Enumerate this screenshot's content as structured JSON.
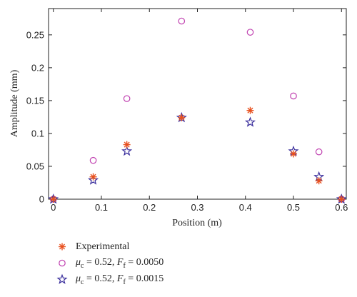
{
  "chart_data": {
    "type": "scatter",
    "xlabel": "Position (m)",
    "ylabel": "Amplitude (mm)",
    "xlim": [
      -0.01,
      0.61
    ],
    "ylim": [
      0,
      0.29
    ],
    "xticks": [
      "0",
      "0.1",
      "0.2",
      "0.3",
      "0.4",
      "0.5",
      "0.6"
    ],
    "xtick_values": [
      0,
      0.1,
      0.2,
      0.3,
      0.4,
      0.5,
      0.6
    ],
    "yticks": [
      "0",
      "0.05",
      "0.1",
      "0.15",
      "0.2",
      "0.25"
    ],
    "ytick_values": [
      0,
      0.05,
      0.1,
      0.15,
      0.2,
      0.25
    ],
    "grid": false,
    "legend_position": "below",
    "series": [
      {
        "name": "Experimental",
        "marker": "asterisk",
        "color": "#e8501e",
        "x": [
          0,
          0.083,
          0.153,
          0.267,
          0.41,
          0.5,
          0.553,
          0.6
        ],
        "y": [
          0,
          0.034,
          0.083,
          0.124,
          0.135,
          0.069,
          0.028,
          0
        ]
      },
      {
        "name": "μc = 0.52, Ff = 0.0050",
        "marker": "circle",
        "color": "#c040b0",
        "x": [
          0,
          0.083,
          0.153,
          0.267,
          0.41,
          0.5,
          0.553,
          0.6
        ],
        "y": [
          0,
          0.059,
          0.153,
          0.271,
          0.254,
          0.157,
          0.072,
          0
        ]
      },
      {
        "name": "μc = 0.52, Ff = 0.0015",
        "marker": "star",
        "color": "#3a2e9c",
        "x": [
          0,
          0.083,
          0.153,
          0.267,
          0.41,
          0.5,
          0.553,
          0.6
        ],
        "y": [
          0,
          0.029,
          0.073,
          0.124,
          0.117,
          0.073,
          0.034,
          0
        ]
      }
    ]
  },
  "legend": {
    "entries": [
      {
        "plain": "Experimental"
      },
      {
        "mu_symbol": "μ",
        "mu_sub": "c",
        "mu_value": " = 0.52, ",
        "f_symbol": "F",
        "f_sub": "f",
        "f_value": " = 0.0050"
      },
      {
        "mu_symbol": "μ",
        "mu_sub": "c",
        "mu_value": " = 0.52, ",
        "f_symbol": "F",
        "f_sub": "f",
        "f_value": " = 0.0015"
      }
    ]
  }
}
